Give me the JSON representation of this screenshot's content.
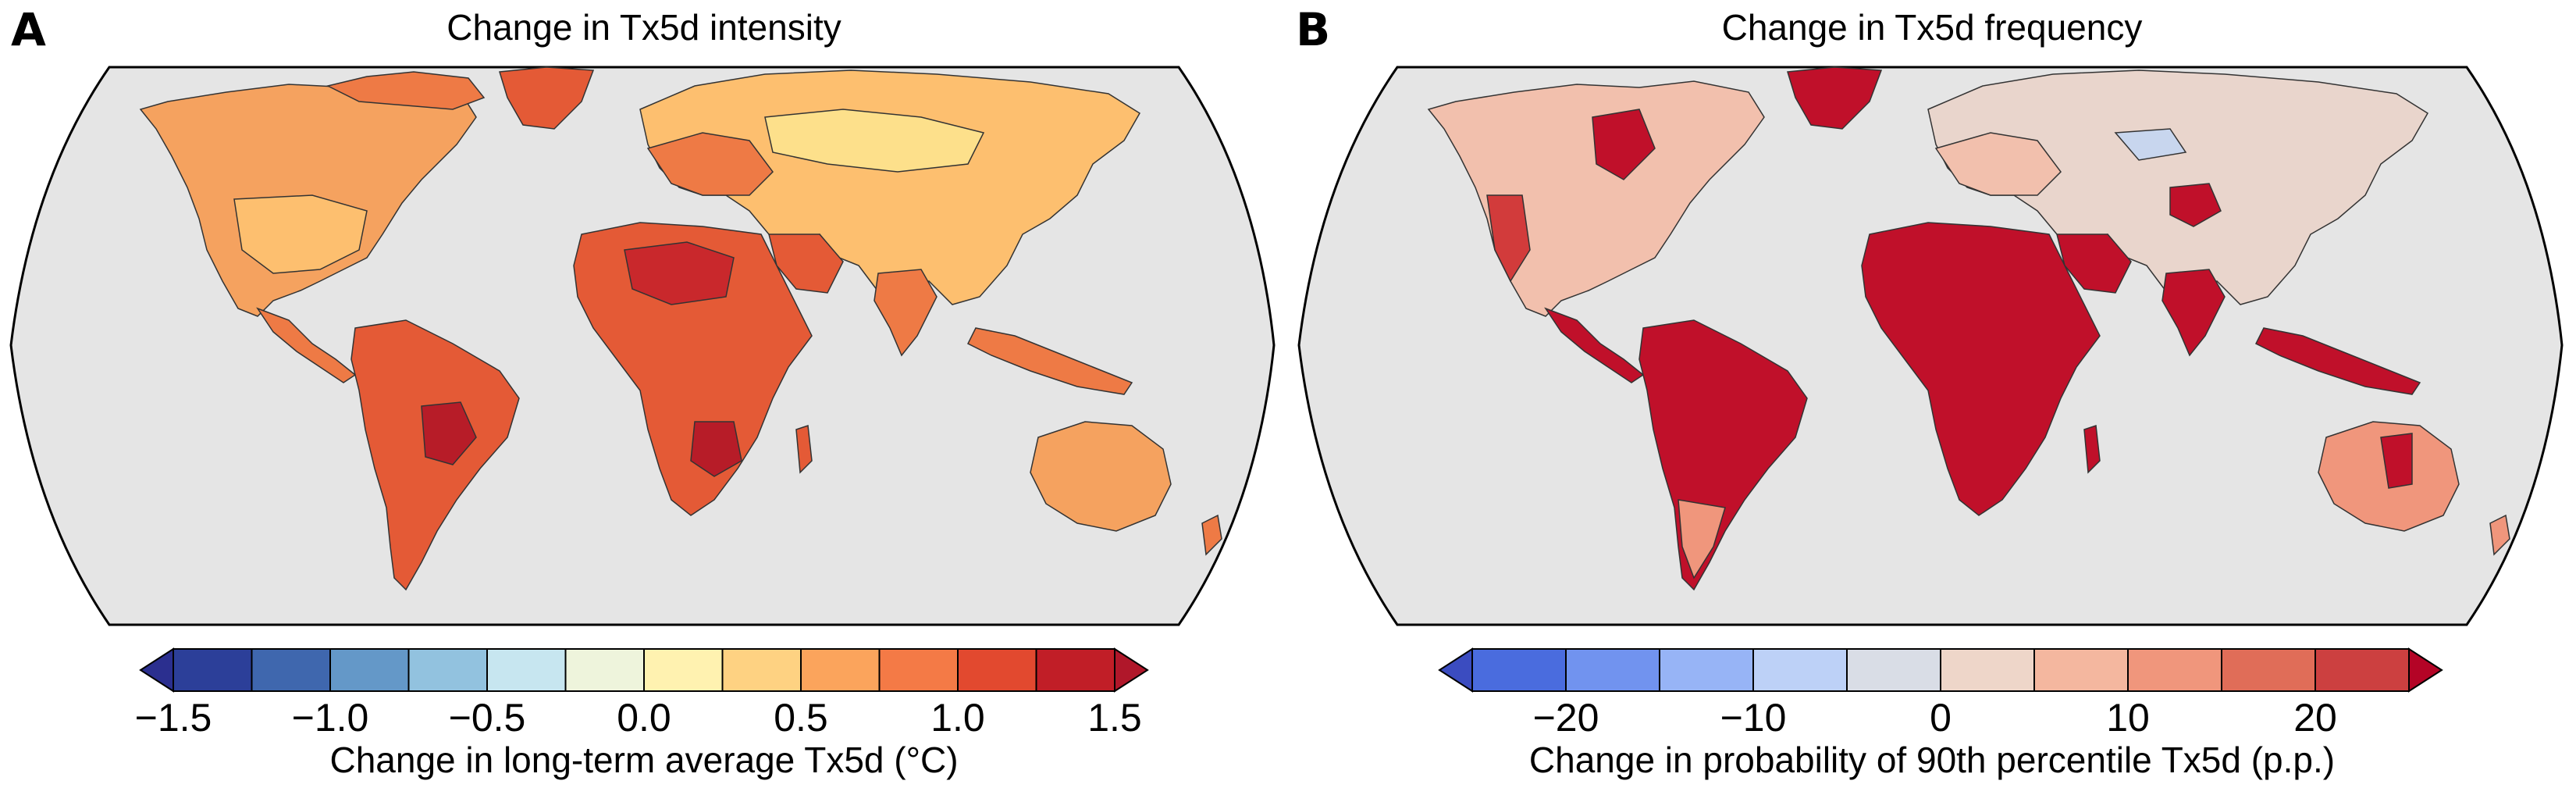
{
  "panels": [
    {
      "letter": "A",
      "title": "Change in Tx5d intensity",
      "colorbar": {
        "label": "Change in long-term average Tx5d (°C)",
        "tick_labels": [
          "−1.5",
          "−1.0",
          "−0.5",
          "0.0",
          "0.5",
          "1.0",
          "1.5"
        ],
        "colors": [
          "#2c3f99",
          "#3f67ae",
          "#6498c8",
          "#92c2df",
          "#c7e6f0",
          "#eef4dc",
          "#fff2b0",
          "#fed282",
          "#fba45c",
          "#f47a46",
          "#e2492f",
          "#c11e27"
        ],
        "extend_colors": [
          "#2b2f8f",
          "#b0172a"
        ]
      },
      "legend_palette": {
        "ocean": "#e5e5e5",
        "land_shades": [
          "#f5a25f",
          "#ee7a45",
          "#e45a36",
          "#c9282c",
          "#fdbf6f",
          "#fde08b",
          "#b71c28"
        ]
      }
    },
    {
      "letter": "B",
      "title": "Change in Tx5d frequency",
      "colorbar": {
        "label": "Change in probability of 90th percentile Tx5d (p.p.)",
        "tick_labels": [
          "−20",
          "−10",
          "0",
          "10",
          "20"
        ],
        "colors": [
          "#4a6cde",
          "#7193ef",
          "#97b4f6",
          "#bdd1f7",
          "#d9dde6",
          "#eed6c9",
          "#f4b79f",
          "#f0967c",
          "#e06d58",
          "#cc4040"
        ],
        "extend_colors": [
          "#3b4cc0",
          "#b40426"
        ]
      },
      "legend_palette": {
        "ocean": "#e5e5e5",
        "land_shades": [
          "#f2c0ad",
          "#e9d5cc",
          "#c0102a",
          "#d23b3b",
          "#f0967c",
          "#c8d6ee",
          "#b40426"
        ]
      }
    }
  ]
}
